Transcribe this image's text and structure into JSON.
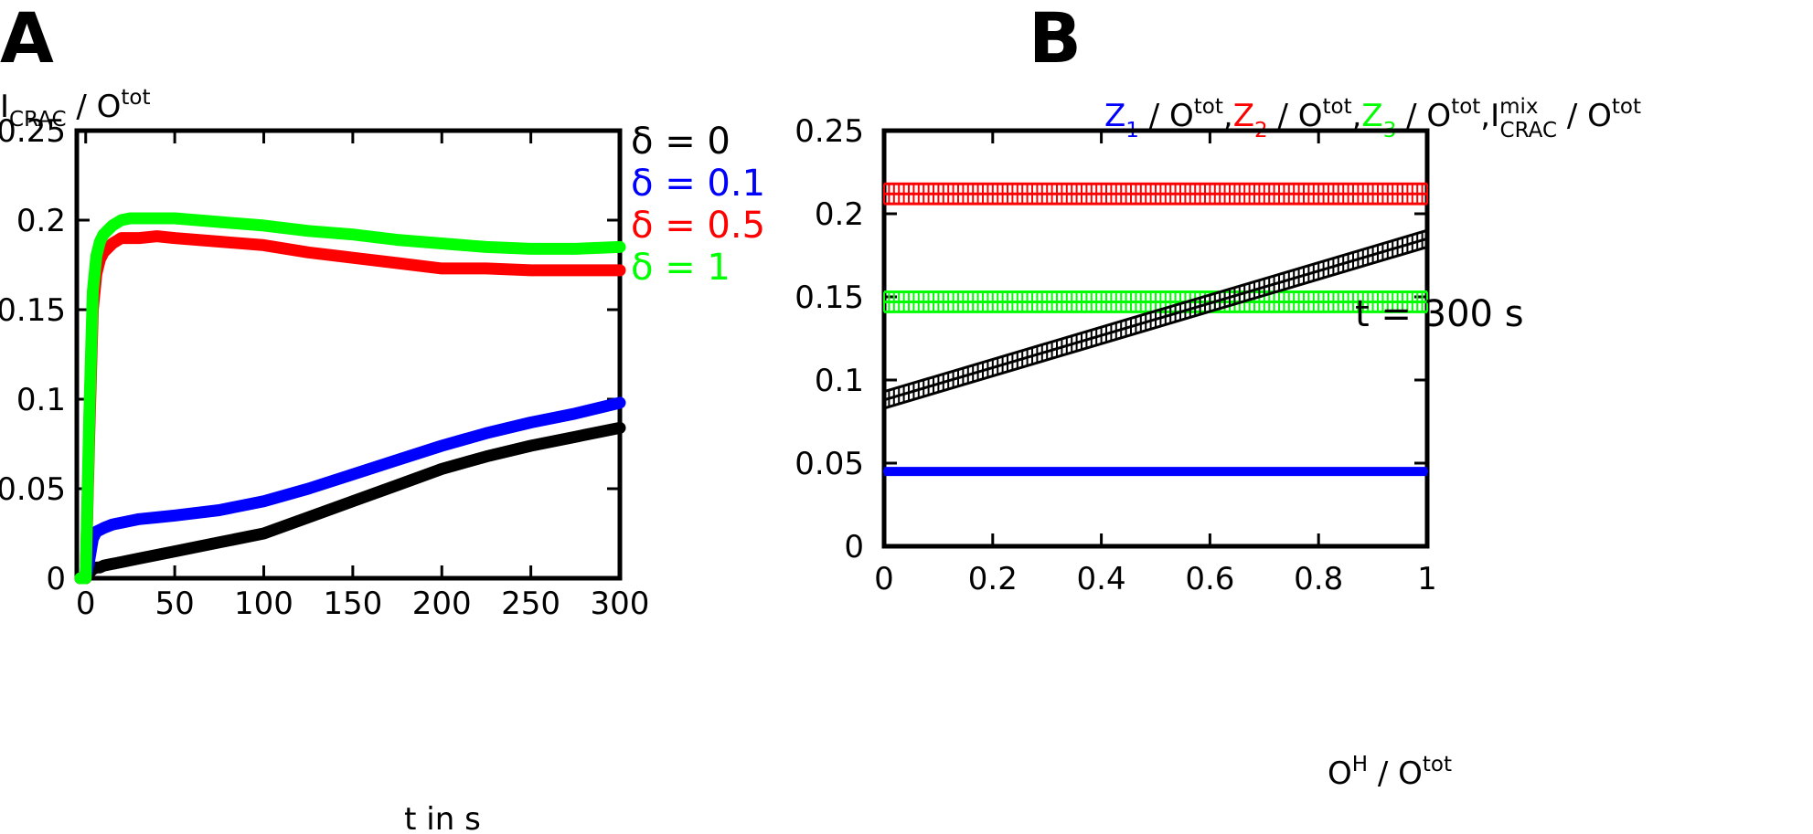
{
  "colors": {
    "black": "#000000",
    "blue": "#0000ff",
    "red": "#ff0000",
    "green": "#00ff00"
  },
  "chart_data": [
    {
      "panel": "A",
      "type": "line",
      "ylabel_main": "I",
      "ylabel_sub": "CRAC",
      "ylabel_sep": " / O",
      "ylabel_sup": "tot",
      "xlabel": "t in s",
      "xlim": [
        -5,
        300
      ],
      "ylim": [
        0,
        0.25
      ],
      "xticks": [
        0,
        50,
        100,
        150,
        200,
        250,
        300
      ],
      "xtick_labels": [
        "0",
        "50",
        "100",
        "150",
        "200",
        "250",
        "300"
      ],
      "yticks": [
        0,
        0.05,
        0.1,
        0.15,
        0.2,
        0.25
      ],
      "ytick_labels": [
        "0",
        "0.05",
        "0.1",
        "0.15",
        "0.2",
        "0.25"
      ],
      "legend_position": "right, outside",
      "x": [
        -3,
        0,
        2,
        4,
        6,
        8,
        10,
        15,
        20,
        25,
        30,
        40,
        50,
        75,
        100,
        125,
        150,
        175,
        200,
        225,
        250,
        275,
        300
      ],
      "series": [
        {
          "name": "δ = 0",
          "color": "#000000",
          "values": [
            0,
            0,
            0.003,
            0.005,
            0.006,
            0.006,
            0.007,
            0.008,
            0.009,
            0.01,
            0.011,
            0.013,
            0.015,
            0.02,
            0.025,
            0.034,
            0.043,
            0.052,
            0.061,
            0.068,
            0.074,
            0.079,
            0.084
          ]
        },
        {
          "name": "δ = 0.1",
          "color": "#0000ff",
          "values": [
            0,
            0,
            0.01,
            0.022,
            0.026,
            0.027,
            0.028,
            0.03,
            0.031,
            0.032,
            0.033,
            0.034,
            0.035,
            0.038,
            0.043,
            0.05,
            0.058,
            0.066,
            0.074,
            0.081,
            0.087,
            0.092,
            0.098
          ]
        },
        {
          "name": "δ = 0.5",
          "color": "#ff0000",
          "values": [
            0,
            0,
            0.08,
            0.15,
            0.17,
            0.178,
            0.182,
            0.187,
            0.19,
            0.19,
            0.19,
            0.191,
            0.19,
            0.188,
            0.186,
            0.182,
            0.179,
            0.176,
            0.173,
            0.173,
            0.172,
            0.172,
            0.172
          ]
        },
        {
          "name": "δ = 1",
          "color": "#00ff00",
          "values": [
            0,
            0,
            0.09,
            0.16,
            0.18,
            0.188,
            0.192,
            0.197,
            0.2,
            0.201,
            0.201,
            0.201,
            0.201,
            0.199,
            0.197,
            0.194,
            0.192,
            0.189,
            0.187,
            0.185,
            0.184,
            0.184,
            0.185
          ]
        }
      ]
    },
    {
      "panel": "B",
      "type": "line",
      "ylabel_parts": [
        {
          "main": "Z",
          "sub": "1",
          "rest": " / O",
          "sup": "tot",
          "tail": ",",
          "color": "#0000ff"
        },
        {
          "main": "Z",
          "sub": "2",
          "rest": " / O",
          "sup": "tot",
          "tail": ",",
          "color": "#ff0000"
        },
        {
          "main": "Z",
          "sub": "3",
          "rest": " / O",
          "sup": "tot",
          "tail": ",",
          "color": "#00ff00"
        },
        {
          "main": "I",
          "sub": "CRAC",
          "supmix": "mix",
          "rest": " / O",
          "sup": "tot",
          "tail": "",
          "color": "#000000"
        }
      ],
      "xlabel_main": "O",
      "xlabel_sup1": "H",
      "xlabel_rest": " / O",
      "xlabel_sup2": "tot",
      "annotation": "t = 300 s",
      "xlim": [
        0,
        1
      ],
      "ylim": [
        0,
        0.25
      ],
      "xticks": [
        0,
        0.2,
        0.4,
        0.6,
        0.8,
        1
      ],
      "xtick_labels": [
        "0",
        "0.2",
        "0.4",
        "0.6",
        "0.8",
        "1"
      ],
      "yticks": [
        0,
        0.05,
        0.1,
        0.15,
        0.2,
        0.25
      ],
      "ytick_labels": [
        "0",
        "0.05",
        "0.1",
        "0.15",
        "0.2",
        "0.25"
      ],
      "x": [
        0,
        1
      ],
      "series": [
        {
          "name": "Z1 / Otot",
          "color": "#0000ff",
          "values": [
            0.045,
            0.045
          ],
          "err": 0.001
        },
        {
          "name": "Z2 / Otot",
          "color": "#ff0000",
          "values": [
            0.212,
            0.212
          ],
          "err": 0.006
        },
        {
          "name": "Z3 / Otot",
          "color": "#00ff00",
          "values": [
            0.147,
            0.147
          ],
          "err": 0.006
        },
        {
          "name": "ICRAC mix / Otot",
          "color": "#000000",
          "values": [
            0.088,
            0.185
          ],
          "err": 0.005
        }
      ]
    }
  ]
}
